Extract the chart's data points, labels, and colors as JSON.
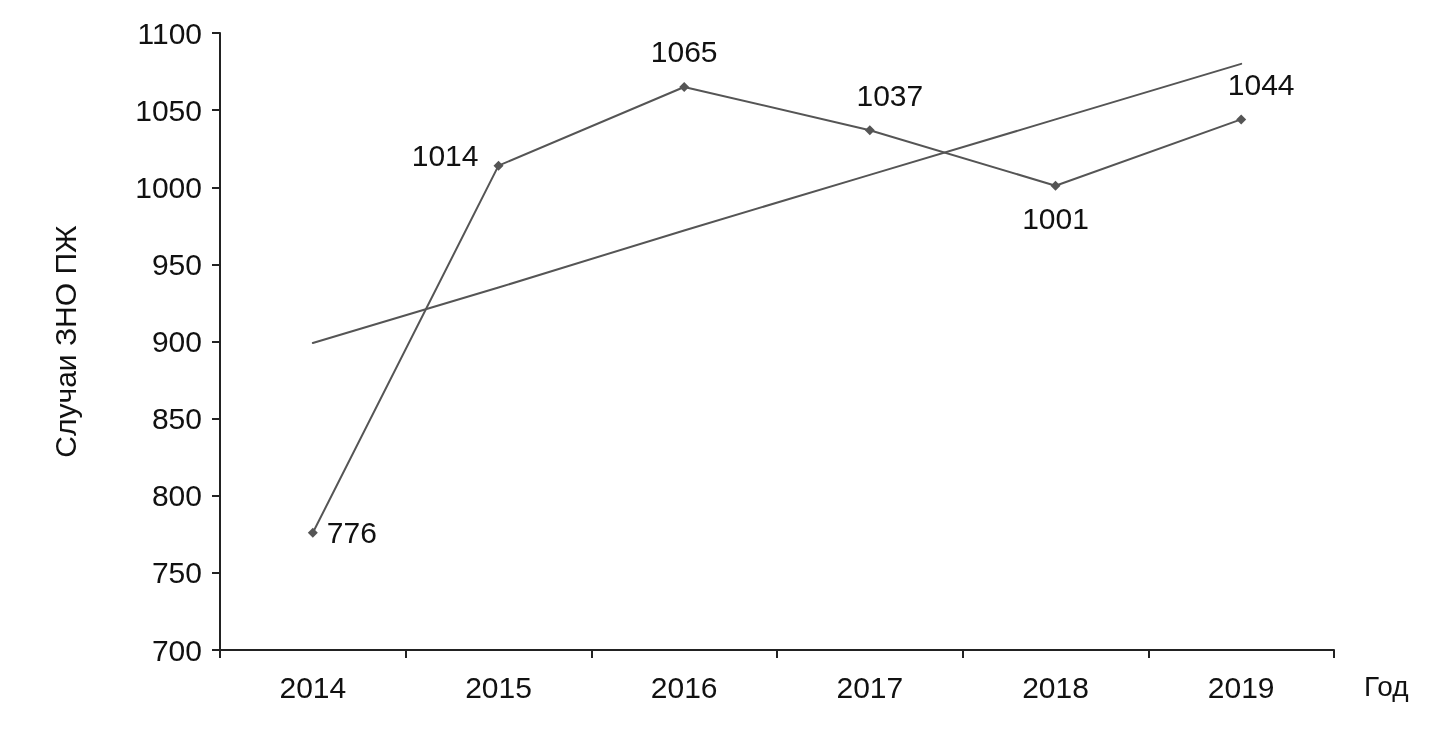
{
  "chart_data": {
    "type": "line",
    "xlabel": "Год",
    "ylabel": "Случаи ЗНО ПЖ",
    "categories": [
      "2014",
      "2015",
      "2016",
      "2017",
      "2018",
      "2019"
    ],
    "series": [
      {
        "color": "#555555",
        "values": [
          776,
          1014,
          1065,
          1037,
          1001,
          1044
        ],
        "value_labels": [
          "776",
          "1014",
          "1065",
          "1037",
          "1001",
          "1044"
        ],
        "marker": "diamond"
      },
      {
        "color": "#555555",
        "values": [
          899,
          935,
          972,
          1008,
          1044,
          1080
        ],
        "marker": "none"
      }
    ],
    "ylim": [
      700,
      1100
    ],
    "yticks": [
      700,
      750,
      800,
      850,
      900,
      950,
      1000,
      1050,
      1100
    ],
    "grid": false,
    "line_style": "solid"
  }
}
